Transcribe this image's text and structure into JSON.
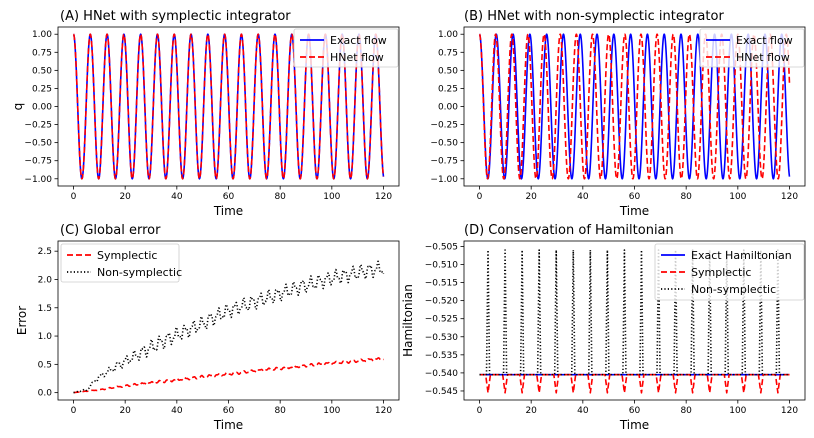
{
  "chart_data": [
    {
      "type": "line",
      "title": "(A) HNet with symplectic integrator",
      "xlabel": "Time",
      "ylabel": "q",
      "xlim": [
        -6,
        126
      ],
      "ylim": [
        -1.1,
        1.1
      ],
      "xticks": [
        0,
        20,
        40,
        60,
        80,
        100,
        120
      ],
      "yticks": [
        -1.0,
        -0.75,
        -0.5,
        -0.25,
        0.0,
        0.25,
        0.5,
        0.75,
        1.0
      ],
      "ytick_labels": [
        "−1.00",
        "−0.75",
        "−0.50",
        "−0.25",
        "0.00",
        "0.25",
        "0.50",
        "0.75",
        "1.00"
      ],
      "grid": false,
      "legend_position": "top-right",
      "series": [
        {
          "name": "Exact flow",
          "color": "#0000ff",
          "style": "solid",
          "function": "cos",
          "period": 6.5,
          "t_range": [
            0,
            120
          ]
        },
        {
          "name": "HNet flow",
          "color": "#ff0000",
          "style": "dashed",
          "function": "cos",
          "period": 6.5,
          "t_range": [
            0,
            120
          ]
        }
      ]
    },
    {
      "type": "line",
      "title": "(B) HNet with non-symplectic integrator",
      "xlabel": "Time",
      "ylabel": "",
      "xlim": [
        -6,
        126
      ],
      "ylim": [
        -1.1,
        1.1
      ],
      "xticks": [
        0,
        20,
        40,
        60,
        80,
        100,
        120
      ],
      "yticks": [
        -1.0,
        -0.75,
        -0.5,
        -0.25,
        0.0,
        0.25,
        0.5,
        0.75,
        1.0
      ],
      "ytick_labels": [
        "−1.00",
        "−0.75",
        "−0.50",
        "−0.25",
        "0.00",
        "0.25",
        "0.50",
        "0.75",
        "1.00"
      ],
      "grid": false,
      "legend_position": "top-right",
      "series": [
        {
          "name": "Exact flow",
          "color": "#0000ff",
          "style": "solid",
          "function": "cos",
          "period": 6.5,
          "t_range": [
            0,
            120
          ]
        },
        {
          "name": "HNet flow",
          "color": "#ff0000",
          "style": "dashed",
          "function": "cos",
          "period": 6.25,
          "t_range": [
            0,
            120
          ]
        }
      ]
    },
    {
      "type": "line",
      "title": "(C) Global error",
      "xlabel": "Time",
      "ylabel": "Error",
      "xlim": [
        -6,
        126
      ],
      "ylim": [
        -0.13,
        2.68
      ],
      "xticks": [
        0,
        20,
        40,
        60,
        80,
        100,
        120
      ],
      "yticks": [
        0.0,
        0.5,
        1.0,
        1.5,
        2.0,
        2.5
      ],
      "ytick_labels": [
        "0.0",
        "0.5",
        "1.0",
        "1.5",
        "2.0",
        "2.5"
      ],
      "grid": false,
      "legend_position": "top-left",
      "series": [
        {
          "name": "Symplectic",
          "color": "#ff0000",
          "style": "dashed",
          "x": [
            0,
            10,
            20,
            30,
            40,
            50,
            60,
            70,
            80,
            90,
            100,
            110,
            120
          ],
          "y": [
            0.0,
            0.05,
            0.12,
            0.17,
            0.23,
            0.28,
            0.33,
            0.38,
            0.43,
            0.48,
            0.52,
            0.56,
            0.6
          ],
          "oscillation_amplitude": 0.05
        },
        {
          "name": "Non-symplectic",
          "color": "#000000",
          "style": "dotted",
          "x": [
            0,
            5,
            10,
            20,
            30,
            40,
            50,
            60,
            70,
            80,
            90,
            100,
            110,
            120
          ],
          "y": [
            0.0,
            0.05,
            0.28,
            0.55,
            0.8,
            1.02,
            1.22,
            1.45,
            1.6,
            1.75,
            1.9,
            2.02,
            2.12,
            2.2
          ],
          "oscillation_amplitude": 0.28
        }
      ]
    },
    {
      "type": "line",
      "title": "(D) Conservation of Hamiltonian",
      "xlabel": "Time",
      "ylabel": "Hamiltonian",
      "xlim": [
        -6,
        126
      ],
      "ylim": [
        -0.5475,
        -0.5035
      ],
      "xticks": [
        0,
        20,
        40,
        60,
        80,
        100,
        120
      ],
      "yticks": [
        -0.545,
        -0.54,
        -0.535,
        -0.53,
        -0.525,
        -0.52,
        -0.515,
        -0.51,
        -0.505
      ],
      "ytick_labels": [
        "−0.545",
        "−0.540",
        "−0.535",
        "−0.530",
        "−0.525",
        "−0.520",
        "−0.515",
        "−0.510",
        "−0.505"
      ],
      "grid": false,
      "legend_position": "top-right",
      "series": [
        {
          "name": "Exact Hamiltonian",
          "color": "#0000ff",
          "style": "solid",
          "constant": -0.5405,
          "t_range": [
            0,
            120
          ]
        },
        {
          "name": "Symplectic",
          "color": "#ff0000",
          "style": "dashed",
          "baseline": -0.5405,
          "dip_min": -0.5455,
          "spike_period": 6.6,
          "t_range": [
            0,
            120
          ]
        },
        {
          "name": "Non-symplectic",
          "color": "#000000",
          "style": "dotted",
          "baseline": -0.5405,
          "spike_peak": -0.506,
          "spike_period": 6.6,
          "t_range": [
            0,
            120
          ]
        }
      ]
    }
  ]
}
